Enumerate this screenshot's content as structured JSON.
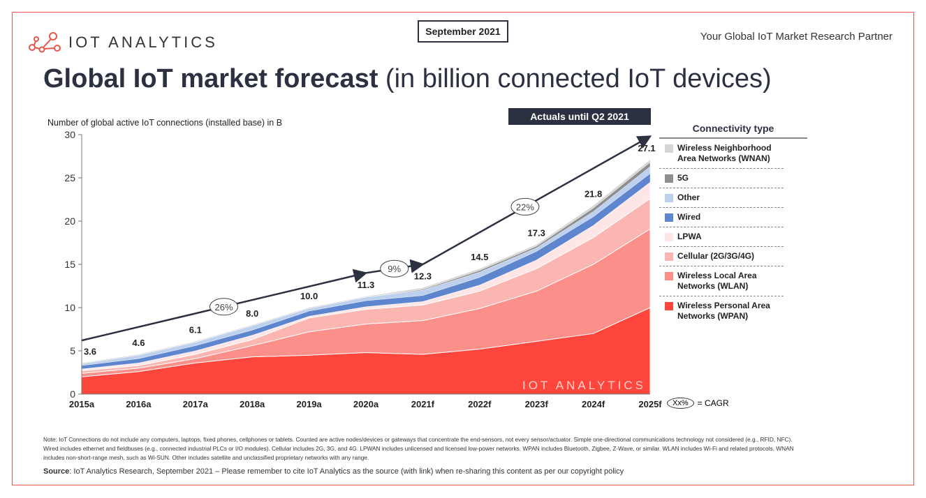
{
  "header": {
    "brand": "IOT ANALYTICS",
    "date": "September 2021",
    "tagline": "Your Global IoT Market Research Partner",
    "title_bold": "Global IoT market forecast",
    "title_rest": " (in billion connected IoT devices)",
    "actuals_badge": "Actuals until Q2 2021"
  },
  "colors": {
    "frame": "#e8554a",
    "dark": "#2c3142"
  },
  "chart_data": {
    "type": "area",
    "stacked": true,
    "ylabel": "Number of global active IoT connections (installed base) in B",
    "ylim": [
      0,
      30
    ],
    "yticks": [
      0,
      5,
      10,
      15,
      20,
      25,
      30
    ],
    "categories": [
      "2015a",
      "2016a",
      "2017a",
      "2018a",
      "2019a",
      "2020a",
      "2021f",
      "2022f",
      "2023f",
      "2024f",
      "2025f"
    ],
    "totals": [
      "3.6",
      "4.6",
      "6.1",
      "8.0",
      "10.0",
      "11.3",
      "12.3",
      "14.5",
      "17.3",
      "21.8",
      "27.1"
    ],
    "series": [
      {
        "name": "Wireless Personal Area Networks (WPAN)",
        "color": "#ff463c",
        "values": [
          2.0,
          2.6,
          3.6,
          4.3,
          4.5,
          4.8,
          4.6,
          5.2,
          6.1,
          7.0,
          10.0
        ]
      },
      {
        "name": "Wireless Local Area Networks (WLAN)",
        "color": "#fc8f8a",
        "values": [
          0.4,
          0.4,
          0.5,
          1.3,
          2.7,
          3.3,
          3.9,
          4.7,
          5.8,
          8.0,
          9.1
        ]
      },
      {
        "name": "Cellular (2G/3G/4G)",
        "color": "#fbb6b2",
        "values": [
          0.3,
          0.3,
          0.5,
          0.7,
          1.6,
          1.7,
          1.8,
          2.0,
          2.6,
          3.1,
          3.5
        ]
      },
      {
        "name": "LPWA",
        "color": "#fde6e5",
        "values": [
          0.2,
          0.3,
          0.4,
          0.5,
          0.2,
          0.3,
          0.4,
          0.7,
          1.0,
          1.4,
          1.9
        ]
      },
      {
        "name": "Wired",
        "color": "#5e86cf",
        "values": [
          0.4,
          0.5,
          0.6,
          0.6,
          0.6,
          0.7,
          0.7,
          0.9,
          1.0,
          1.0,
          1.0
        ]
      },
      {
        "name": "Other",
        "color": "#bdd0ee",
        "values": [
          0.2,
          0.4,
          0.4,
          0.5,
          0.3,
          0.4,
          0.6,
          0.6,
          0.4,
          0.6,
          0.8
        ]
      },
      {
        "name": "5G",
        "color": "#8e8e8e",
        "values": [
          0,
          0,
          0,
          0,
          0,
          0,
          0.1,
          0.2,
          0.2,
          0.4,
          0.5
        ]
      },
      {
        "name": "Wireless Neighborhood Area Networks (WNAN)",
        "color": "#d6d6d6",
        "values": [
          0.1,
          0.1,
          0.1,
          0.1,
          0.1,
          0.1,
          0.2,
          0.2,
          0.2,
          0.3,
          0.3
        ]
      }
    ],
    "cagr": [
      {
        "label": "26%",
        "from": "2015a",
        "to": "2020a",
        "y_from": 6.2,
        "y_to": 14.0
      },
      {
        "label": "9%",
        "from": "2020a",
        "to": "2021f",
        "y_from": 14.0,
        "y_to": 15.0
      },
      {
        "label": "22%",
        "from": "2021f",
        "to": "2025f",
        "y_from": 15.0,
        "y_to": 29.8
      }
    ],
    "legend_title": "Connectivity type",
    "cagr_key": {
      "symbol": "Xx%",
      "text": "= CAGR"
    },
    "watermark": "IOT ANALYTICS"
  },
  "legend": [
    {
      "label": "Wireless Neighborhood Area Networks (WNAN)",
      "color": "#d6d6d6"
    },
    {
      "label": "5G",
      "color": "#8e8e8e"
    },
    {
      "label": "Other",
      "color": "#bdd0ee"
    },
    {
      "label": "Wired",
      "color": "#5e86cf"
    },
    {
      "label": "LPWA",
      "color": "#fde6e5"
    },
    {
      "label": "Cellular (2G/3G/4G)",
      "color": "#fbb6b2"
    },
    {
      "label": "Wireless Local Area Networks (WLAN)",
      "color": "#fc8f8a"
    },
    {
      "label": "Wireless Personal Area Networks (WPAN)",
      "color": "#ff463c"
    }
  ],
  "footer": {
    "note": "Note: IoT Connections do not include any computers, laptops, fixed phones, cellphones or tablets. Counted are active nodes/devices or gateways that concentrate the end-sensors, not every sensor/actuator. Simple one-directional communications technology not considered (e.g., RFID, NFC). Wired includes ethernet and fieldbuses (e.g., connected industrial PLCs or I/O modules). Cellular includes 2G, 3G, and 4G. LPWAN includes unlicensed and licensed low-power networks. WPAN includes Bluetooth, Zigbee, Z-Wave, or similar. WLAN includes Wi-Fi and related protocols. WNAN includes non-short-range mesh, such as Wi-SUN. Other includes satellite and unclassified proprietary networks with any range.",
    "source_label": "Source",
    "source_text": ": IoT Analytics Research, September 2021 – Please remember to cite IoT Analytics as the source (with link) when re-sharing this content as per our copyright policy"
  }
}
